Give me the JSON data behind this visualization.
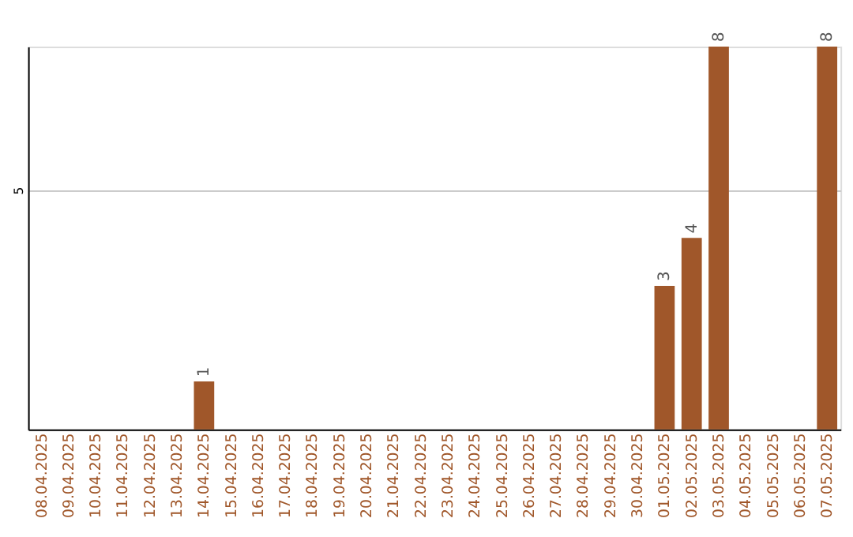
{
  "chart_data": {
    "type": "bar",
    "categories": [
      "08.04.2025",
      "09.04.2025",
      "10.04.2025",
      "11.04.2025",
      "12.04.2025",
      "13.04.2025",
      "14.04.2025",
      "15.04.2025",
      "16.04.2025",
      "17.04.2025",
      "18.04.2025",
      "19.04.2025",
      "20.04.2025",
      "21.04.2025",
      "22.04.2025",
      "23.04.2025",
      "24.04.2025",
      "25.04.2025",
      "26.04.2025",
      "27.04.2025",
      "28.04.2025",
      "29.04.2025",
      "30.04.2025",
      "01.05.2025",
      "02.05.2025",
      "03.05.2025",
      "04.05.2025",
      "05.05.2025",
      "06.05.2025",
      "07.05.2025"
    ],
    "values": [
      0,
      0,
      0,
      0,
      0,
      0,
      1,
      0,
      0,
      0,
      0,
      0,
      0,
      0,
      0,
      0,
      0,
      0,
      0,
      0,
      0,
      0,
      0,
      3,
      4,
      8,
      0,
      0,
      0,
      8
    ],
    "value_labels": [
      null,
      null,
      null,
      null,
      null,
      null,
      "1",
      null,
      null,
      null,
      null,
      null,
      null,
      null,
      null,
      null,
      null,
      null,
      null,
      null,
      null,
      null,
      null,
      "3",
      "4",
      "8",
      null,
      null,
      null,
      "8"
    ],
    "color": "#a0572a",
    "ylim": [
      0,
      8
    ],
    "yticks": [
      5
    ],
    "grid": "y"
  }
}
